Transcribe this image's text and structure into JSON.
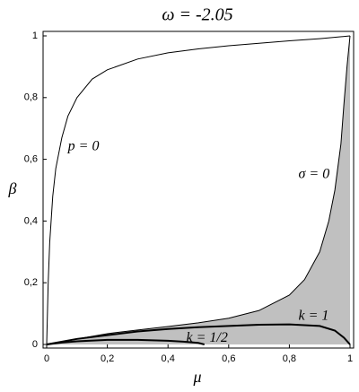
{
  "chart_data": {
    "type": "line",
    "title": "ω = -2.05",
    "x_label": "μ",
    "y_label": "β",
    "xlim": [
      0,
      1
    ],
    "ylim": [
      0,
      1
    ],
    "xticks": [
      0,
      {
        "value": 0.2,
        "label": "0,2"
      },
      {
        "value": 0.4,
        "label": "0,4"
      },
      {
        "value": 0.6,
        "label": "0,6"
      },
      {
        "value": 0.8,
        "label": "0,8"
      },
      1
    ],
    "yticks": [
      0,
      {
        "value": 0.2,
        "label": "0,2"
      },
      {
        "value": 0.4,
        "label": "0,4"
      },
      {
        "value": 0.6,
        "label": "0,6"
      },
      {
        "value": 0.8,
        "label": "0,8"
      },
      1
    ],
    "series": [
      {
        "name": "p = 0",
        "color": "#000000",
        "width": 1,
        "x": [
          0,
          0.005,
          0.01,
          0.02,
          0.03,
          0.05,
          0.07,
          0.1,
          0.15,
          0.2,
          0.3,
          0.4,
          0.5,
          0.6,
          0.7,
          0.8,
          0.9,
          1
        ],
        "values": [
          0,
          0.2,
          0.33,
          0.48,
          0.57,
          0.67,
          0.74,
          0.8,
          0.86,
          0.89,
          0.925,
          0.945,
          0.958,
          0.968,
          0.976,
          0.984,
          0.991,
          1
        ]
      },
      {
        "name": "σ = 0",
        "color": "#000000",
        "width": 1,
        "fill": "#c0c0c0",
        "x": [
          0,
          0.1,
          0.2,
          0.3,
          0.4,
          0.5,
          0.6,
          0.7,
          0.8,
          0.85,
          0.9,
          0.93,
          0.95,
          0.97,
          0.98,
          0.99,
          1
        ],
        "values": [
          0,
          0.018,
          0.035,
          0.047,
          0.058,
          0.07,
          0.085,
          0.11,
          0.16,
          0.21,
          0.3,
          0.4,
          0.5,
          0.65,
          0.78,
          0.9,
          1
        ]
      },
      {
        "name": "k = 1",
        "color": "#000000",
        "width": 2,
        "x": [
          0,
          0.1,
          0.2,
          0.3,
          0.4,
          0.5,
          0.6,
          0.7,
          0.8,
          0.9,
          0.95,
          0.98,
          1
        ],
        "values": [
          0,
          0.018,
          0.03,
          0.042,
          0.05,
          0.056,
          0.06,
          0.064,
          0.065,
          0.06,
          0.045,
          0.022,
          0
        ]
      },
      {
        "name": "k = 1/2",
        "color": "#000000",
        "width": 2,
        "x": [
          0,
          0.05,
          0.1,
          0.2,
          0.3,
          0.4,
          0.45,
          0.5,
          0.52
        ],
        "values": [
          0,
          0.006,
          0.01,
          0.015,
          0.015,
          0.012,
          0.009,
          0.005,
          0
        ]
      }
    ],
    "annotations": [
      {
        "text": "p = 0",
        "x": 0.07,
        "y": 0.64
      },
      {
        "text": "σ = 0",
        "x": 0.83,
        "y": 0.55
      },
      {
        "text": "k = 1",
        "x": 0.83,
        "y": 0.09
      },
      {
        "text": "k = 1/2",
        "x": 0.46,
        "y": 0.02
      }
    ]
  }
}
